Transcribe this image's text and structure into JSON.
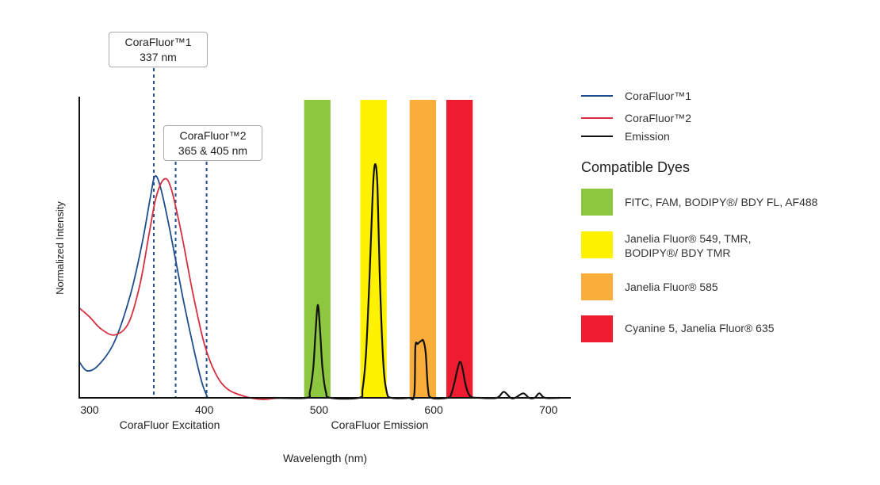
{
  "chart_data": {
    "type": "line",
    "xlabel": "Wavelength (nm)",
    "ylabel": "Normalized Intensity",
    "xlim": [
      291,
      719
    ],
    "ylim": [
      0,
      1
    ],
    "x_ticks": [
      300,
      400,
      500,
      600,
      700
    ],
    "section_labels": [
      "CoraFluor Excitation",
      "CoraFluor Emission"
    ],
    "grid": false,
    "legend_position": "right",
    "series": [
      {
        "name": "CoraFluor™1",
        "color": "#1f4e8c",
        "points": [
          [
            291,
            0.12
          ],
          [
            298,
            0.09
          ],
          [
            308,
            0.11
          ],
          [
            322,
            0.19
          ],
          [
            336,
            0.35
          ],
          [
            346,
            0.52
          ],
          [
            353,
            0.67
          ],
          [
            357,
            0.74
          ],
          [
            362,
            0.7
          ],
          [
            370,
            0.56
          ],
          [
            381,
            0.34
          ],
          [
            391,
            0.16
          ],
          [
            398,
            0.05
          ],
          [
            403,
            0
          ]
        ]
      },
      {
        "name": "CoraFluor™2",
        "color": "#d62f3f",
        "points": [
          [
            291,
            0.3
          ],
          [
            300,
            0.27
          ],
          [
            310,
            0.23
          ],
          [
            322,
            0.21
          ],
          [
            334,
            0.25
          ],
          [
            344,
            0.38
          ],
          [
            352,
            0.55
          ],
          [
            358,
            0.67
          ],
          [
            365,
            0.73
          ],
          [
            371,
            0.7
          ],
          [
            380,
            0.55
          ],
          [
            390,
            0.35
          ],
          [
            400,
            0.18
          ],
          [
            410,
            0.08
          ],
          [
            420,
            0.03
          ],
          [
            435,
            0.005
          ],
          [
            450,
            -0.005
          ],
          [
            465,
            0
          ]
        ]
      },
      {
        "name": "Emission",
        "color": "#111111",
        "points": [
          [
            460,
            0
          ],
          [
            489,
            0
          ],
          [
            492,
            0.02
          ],
          [
            495,
            0.1
          ],
          [
            497,
            0.22
          ],
          [
            499,
            0.31
          ],
          [
            501,
            0.22
          ],
          [
            503,
            0.1
          ],
          [
            506,
            0.02
          ],
          [
            510,
            0
          ],
          [
            535,
            0
          ],
          [
            538,
            0.03
          ],
          [
            541,
            0.15
          ],
          [
            544,
            0.4
          ],
          [
            547,
            0.7
          ],
          [
            549,
            0.78
          ],
          [
            551,
            0.7
          ],
          [
            553,
            0.4
          ],
          [
            556,
            0.12
          ],
          [
            559,
            0.02
          ],
          [
            563,
            0
          ],
          [
            578,
            0
          ],
          [
            583,
            0.01
          ],
          [
            584,
            0.17
          ],
          [
            586,
            0.18
          ],
          [
            589,
            0.19
          ],
          [
            591,
            0.19
          ],
          [
            593,
            0.15
          ],
          [
            595,
            0.03
          ],
          [
            598,
            0
          ],
          [
            612,
            0
          ],
          [
            615,
            0.01
          ],
          [
            618,
            0.05
          ],
          [
            621,
            0.1
          ],
          [
            623,
            0.12
          ],
          [
            625,
            0.1
          ],
          [
            628,
            0.04
          ],
          [
            632,
            0.005
          ],
          [
            640,
            0
          ],
          [
            655,
            0
          ],
          [
            661,
            0.02
          ],
          [
            667,
            0
          ],
          [
            671,
            0
          ],
          [
            678,
            0.015
          ],
          [
            683,
            0
          ],
          [
            688,
            0
          ],
          [
            692,
            0.015
          ],
          [
            697,
            0
          ],
          [
            710,
            0
          ]
        ]
      }
    ],
    "dye_bands": [
      {
        "label": "FITC, FAM, BODIPY®/ BDY FL, AF488",
        "color": "#8dc63f",
        "range": [
          487,
          510
        ]
      },
      {
        "label": "Janelia Fluor® 549, TMR, BODIPY®/ BDY TMR",
        "color": "#fff200",
        "range": [
          536,
          559
        ]
      },
      {
        "label": "Janelia Fluor® 585",
        "color": "#fbad3b",
        "range": [
          579,
          602
        ]
      },
      {
        "label": "Cyanine 5, Janelia Fluor® 635",
        "color": "#ed1c2e",
        "range": [
          611,
          634
        ]
      }
    ],
    "excitation_markers": [
      {
        "label_line1": "CoraFluor™1",
        "label_line2": "337 nm",
        "lines_at": [
          356
        ]
      },
      {
        "label_line1": "CoraFluor™2",
        "label_line2": "365 & 405 nm",
        "lines_at": [
          375,
          402
        ]
      }
    ],
    "marker_color": "#1f4e8c"
  },
  "legend": {
    "title": "Compatible Dyes"
  }
}
